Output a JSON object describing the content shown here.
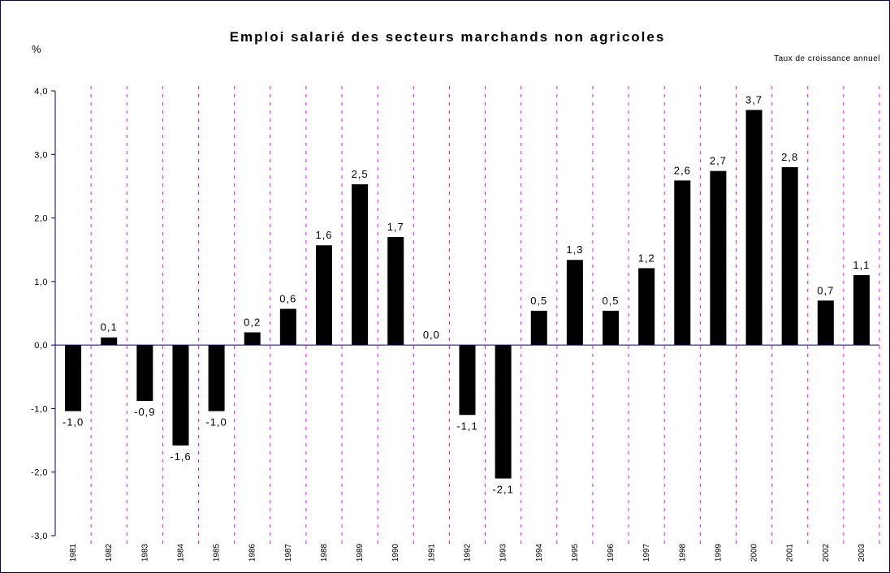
{
  "chart_data": {
    "type": "bar",
    "title": "Emploi salarié des secteurs marchands non agricoles",
    "subtitle": "Taux de croissance annuel",
    "y_label": "%",
    "categories": [
      "1981",
      "1982",
      "1983",
      "1984",
      "1985",
      "1986",
      "1987",
      "1988",
      "1989",
      "1990",
      "1991",
      "1992",
      "1993",
      "1994",
      "1995",
      "1996",
      "1997",
      "1998",
      "1999",
      "2000",
      "2001",
      "2002",
      "2003"
    ],
    "values": [
      -1.04,
      0.12,
      -0.88,
      -1.58,
      -1.04,
      0.2,
      0.57,
      1.57,
      2.53,
      1.7,
      0,
      -1.1,
      -2.1,
      0.54,
      1.34,
      0.54,
      1.21,
      2.59,
      2.74,
      3.7,
      2.8,
      0.7,
      1.1
    ],
    "value_labels": [
      "-1,0",
      "0,1",
      "-0,9",
      "-1,6",
      "-1,0",
      "0,2",
      "0,6",
      "1,6",
      "2,5",
      "1,7",
      "0,0",
      "-1,1",
      "-2,1",
      "0,5",
      "1,3",
      "0,5",
      "1,2",
      "2,6",
      "2,7",
      "3,7",
      "2,8",
      "0,7",
      "1,1"
    ],
    "color": "#000000",
    "ylim": [
      -3,
      4
    ],
    "yticks": [
      {
        "value": -3,
        "label": "-3,0"
      },
      {
        "value": -2,
        "label": "-2,0"
      },
      {
        "value": -1,
        "label": "-1,0"
      },
      {
        "value": 0,
        "label": "0,0"
      },
      {
        "value": 1,
        "label": "1,0"
      },
      {
        "value": 2,
        "label": "2,0"
      },
      {
        "value": 3,
        "label": "3,0"
      },
      {
        "value": 4,
        "label": "4,0"
      }
    ],
    "category_separators": true
  }
}
